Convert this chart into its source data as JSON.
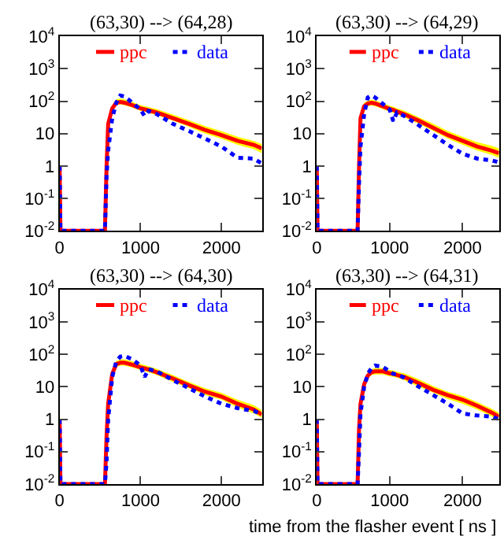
{
  "chart_data": [
    {
      "type": "line",
      "title": "(63,30) --> (64,28)",
      "x": [
        0,
        10,
        560,
        580,
        600,
        650,
        700,
        750,
        800,
        900,
        1000,
        1050,
        1100,
        1200,
        1400,
        1600,
        1800,
        2000,
        2200,
        2400,
        2500
      ],
      "xlim": [
        0,
        2500
      ],
      "xticks": [
        0,
        1000,
        2000
      ],
      "ylim": [
        0.01,
        10000
      ],
      "yticks": [
        {
          "value": 0.01,
          "label": "10$^{-2}$"
        },
        {
          "value": 0.1,
          "label": "10$^{-1}$"
        },
        1,
        10,
        {
          "value": 100,
          "label": "10$^{2}$"
        },
        {
          "value": 1000,
          "label": "10$^{3}$"
        },
        {
          "value": 10000,
          "label": "10$^{4}$"
        }
      ],
      "log": "y",
      "legend": "top",
      "grid": false,
      "series": [
        {
          "name": "ppc",
          "color": "#ff0000",
          "line_style": "solid",
          "values": [
            1,
            0.01,
            0.01,
            1,
            20,
            60,
            90,
            95,
            90,
            75,
            60,
            56,
            52,
            45,
            30,
            20,
            13,
            9,
            6,
            4.5,
            3.5
          ],
          "lower": [
            null,
            null,
            null,
            null,
            16,
            50,
            75,
            80,
            75,
            63,
            50,
            47,
            43,
            37,
            25,
            16,
            10,
            7,
            4.5,
            3.3,
            2.5
          ],
          "upper": [
            null,
            null,
            null,
            null,
            25,
            75,
            115,
            120,
            115,
            95,
            76,
            71,
            66,
            57,
            39,
            26,
            17,
            12,
            8,
            6,
            4.8
          ]
        },
        {
          "name": "data",
          "color": "#0000ff",
          "line_style": "dotted",
          "values": [
            1,
            0.01,
            0.01,
            0.5,
            3,
            30,
            90,
            150,
            140,
            90,
            55,
            35,
            50,
            40,
            20,
            12,
            7,
            4,
            1.8,
            1.7,
            1.2
          ]
        }
      ]
    },
    {
      "type": "line",
      "title": "(63,30) --> (64,29)",
      "x": [
        0,
        10,
        560,
        580,
        600,
        650,
        700,
        750,
        800,
        900,
        1000,
        1050,
        1100,
        1200,
        1400,
        1600,
        1800,
        2000,
        2200,
        2400,
        2500
      ],
      "xlim": [
        0,
        2500
      ],
      "xticks": [
        0,
        1000,
        2000
      ],
      "ylim": [
        0.01,
        10000
      ],
      "yticks": [
        {
          "value": 0.01,
          "label": "10$^{-2}$"
        },
        {
          "value": 0.1,
          "label": "10$^{-1}$"
        },
        1,
        10,
        {
          "value": 100,
          "label": "10$^{2}$"
        },
        {
          "value": 1000,
          "label": "10$^{3}$"
        },
        {
          "value": 10000,
          "label": "10$^{4}$"
        }
      ],
      "log": "y",
      "legend": "top",
      "grid": false,
      "series": [
        {
          "name": "ppc",
          "color": "#ff0000",
          "line_style": "solid",
          "values": [
            1,
            0.01,
            0.01,
            1,
            30,
            70,
            85,
            90,
            85,
            70,
            58,
            54,
            48,
            40,
            25,
            15,
            9,
            6,
            4,
            3,
            2.5
          ],
          "lower": [
            null,
            null,
            null,
            null,
            24,
            57,
            70,
            74,
            70,
            57,
            47,
            44,
            39,
            32,
            20,
            12,
            7,
            4.5,
            3,
            2.2,
            1.8
          ],
          "upper": [
            null,
            null,
            null,
            null,
            38,
            88,
            105,
            112,
            106,
            88,
            73,
            68,
            61,
            51,
            32,
            20,
            12,
            8,
            5.5,
            4.2,
            3.5
          ]
        },
        {
          "name": "data",
          "color": "#0000ff",
          "line_style": "dotted",
          "values": [
            1,
            0.01,
            0.01,
            0.3,
            4,
            40,
            130,
            150,
            130,
            85,
            55,
            24,
            45,
            35,
            18,
            9,
            4.5,
            2.4,
            1.7,
            1.5,
            1.3
          ]
        }
      ]
    },
    {
      "type": "line",
      "title": "(63,30) --> (64,30)",
      "x": [
        0,
        10,
        560,
        580,
        600,
        650,
        700,
        750,
        800,
        900,
        1000,
        1050,
        1100,
        1200,
        1400,
        1600,
        1800,
        2000,
        2200,
        2400,
        2500
      ],
      "xlim": [
        0,
        2500
      ],
      "xticks": [
        0,
        1000,
        2000
      ],
      "ylim": [
        0.01,
        10000
      ],
      "yticks": [
        {
          "value": 0.01,
          "label": "10$^{-2}$"
        },
        {
          "value": 0.1,
          "label": "10$^{-1}$"
        },
        1,
        10,
        {
          "value": 100,
          "label": "10$^{2}$"
        },
        {
          "value": 1000,
          "label": "10$^{3}$"
        },
        {
          "value": 10000,
          "label": "10$^{4}$"
        }
      ],
      "log": "y",
      "legend": "top",
      "grid": false,
      "series": [
        {
          "name": "ppc",
          "color": "#ff0000",
          "line_style": "solid",
          "values": [
            1,
            0.01,
            0.01,
            0.3,
            3,
            25,
            50,
            55,
            55,
            48,
            40,
            37,
            34,
            28,
            18,
            11,
            7,
            5,
            3,
            2,
            1.4
          ],
          "lower": [
            null,
            null,
            null,
            null,
            2.4,
            20,
            41,
            45,
            45,
            39,
            33,
            30,
            28,
            23,
            14,
            9,
            5.5,
            4,
            2.3,
            1.5,
            1.1
          ],
          "upper": [
            null,
            null,
            null,
            null,
            3.8,
            32,
            63,
            70,
            70,
            61,
            51,
            47,
            43,
            36,
            23,
            14,
            9,
            6.5,
            4,
            2.7,
            1.9
          ]
        },
        {
          "name": "data",
          "color": "#0000ff",
          "line_style": "dotted",
          "values": [
            1,
            0.01,
            0.01,
            0.05,
            1,
            20,
            60,
            85,
            90,
            70,
            45,
            20,
            35,
            30,
            16,
            9,
            5,
            3,
            2.2,
            1.8,
            1.4
          ]
        }
      ]
    },
    {
      "type": "line",
      "title": "(63,30) --> (64,31)",
      "xlabel": "time from the flasher event [ ns ]",
      "x": [
        0,
        10,
        560,
        580,
        600,
        650,
        700,
        750,
        800,
        900,
        1000,
        1050,
        1100,
        1200,
        1400,
        1600,
        1800,
        2000,
        2200,
        2400,
        2500
      ],
      "xlim": [
        0,
        2500
      ],
      "xticks": [
        0,
        1000,
        2000
      ],
      "ylim": [
        0.01,
        10000
      ],
      "yticks": [
        {
          "value": 0.01,
          "label": "10$^{-2}$"
        },
        {
          "value": 0.1,
          "label": "10$^{-1}$"
        },
        1,
        10,
        {
          "value": 100,
          "label": "10$^{2}$"
        },
        {
          "value": 1000,
          "label": "10$^{3}$"
        },
        {
          "value": 10000,
          "label": "10$^{4}$"
        }
      ],
      "log": "y",
      "legend": "top",
      "grid": false,
      "series": [
        {
          "name": "ppc",
          "color": "#ff0000",
          "line_style": "solid",
          "values": [
            1,
            0.01,
            0.01,
            0.5,
            3,
            12,
            22,
            28,
            30,
            30,
            26,
            25,
            23,
            20,
            13,
            8,
            5.5,
            4,
            2.6,
            1.6,
            1.2
          ],
          "lower": [
            null,
            null,
            null,
            null,
            2.4,
            10,
            18,
            23,
            24,
            24,
            21,
            20,
            19,
            16,
            10,
            6.5,
            4.2,
            3,
            2,
            1.2,
            0.9
          ],
          "upper": [
            null,
            null,
            null,
            null,
            3.8,
            15,
            28,
            35,
            38,
            38,
            33,
            32,
            29,
            26,
            17,
            10.5,
            7,
            5.2,
            3.4,
            2.1,
            1.6
          ]
        },
        {
          "name": "data",
          "color": "#0000ff",
          "line_style": "dotted",
          "values": [
            1,
            0.01,
            0.01,
            0.1,
            1.5,
            10,
            25,
            38,
            45,
            42,
            30,
            25,
            24,
            19,
            10,
            5.5,
            3,
            1.5,
            1.3,
            1.2,
            1.0
          ]
        }
      ]
    }
  ]
}
